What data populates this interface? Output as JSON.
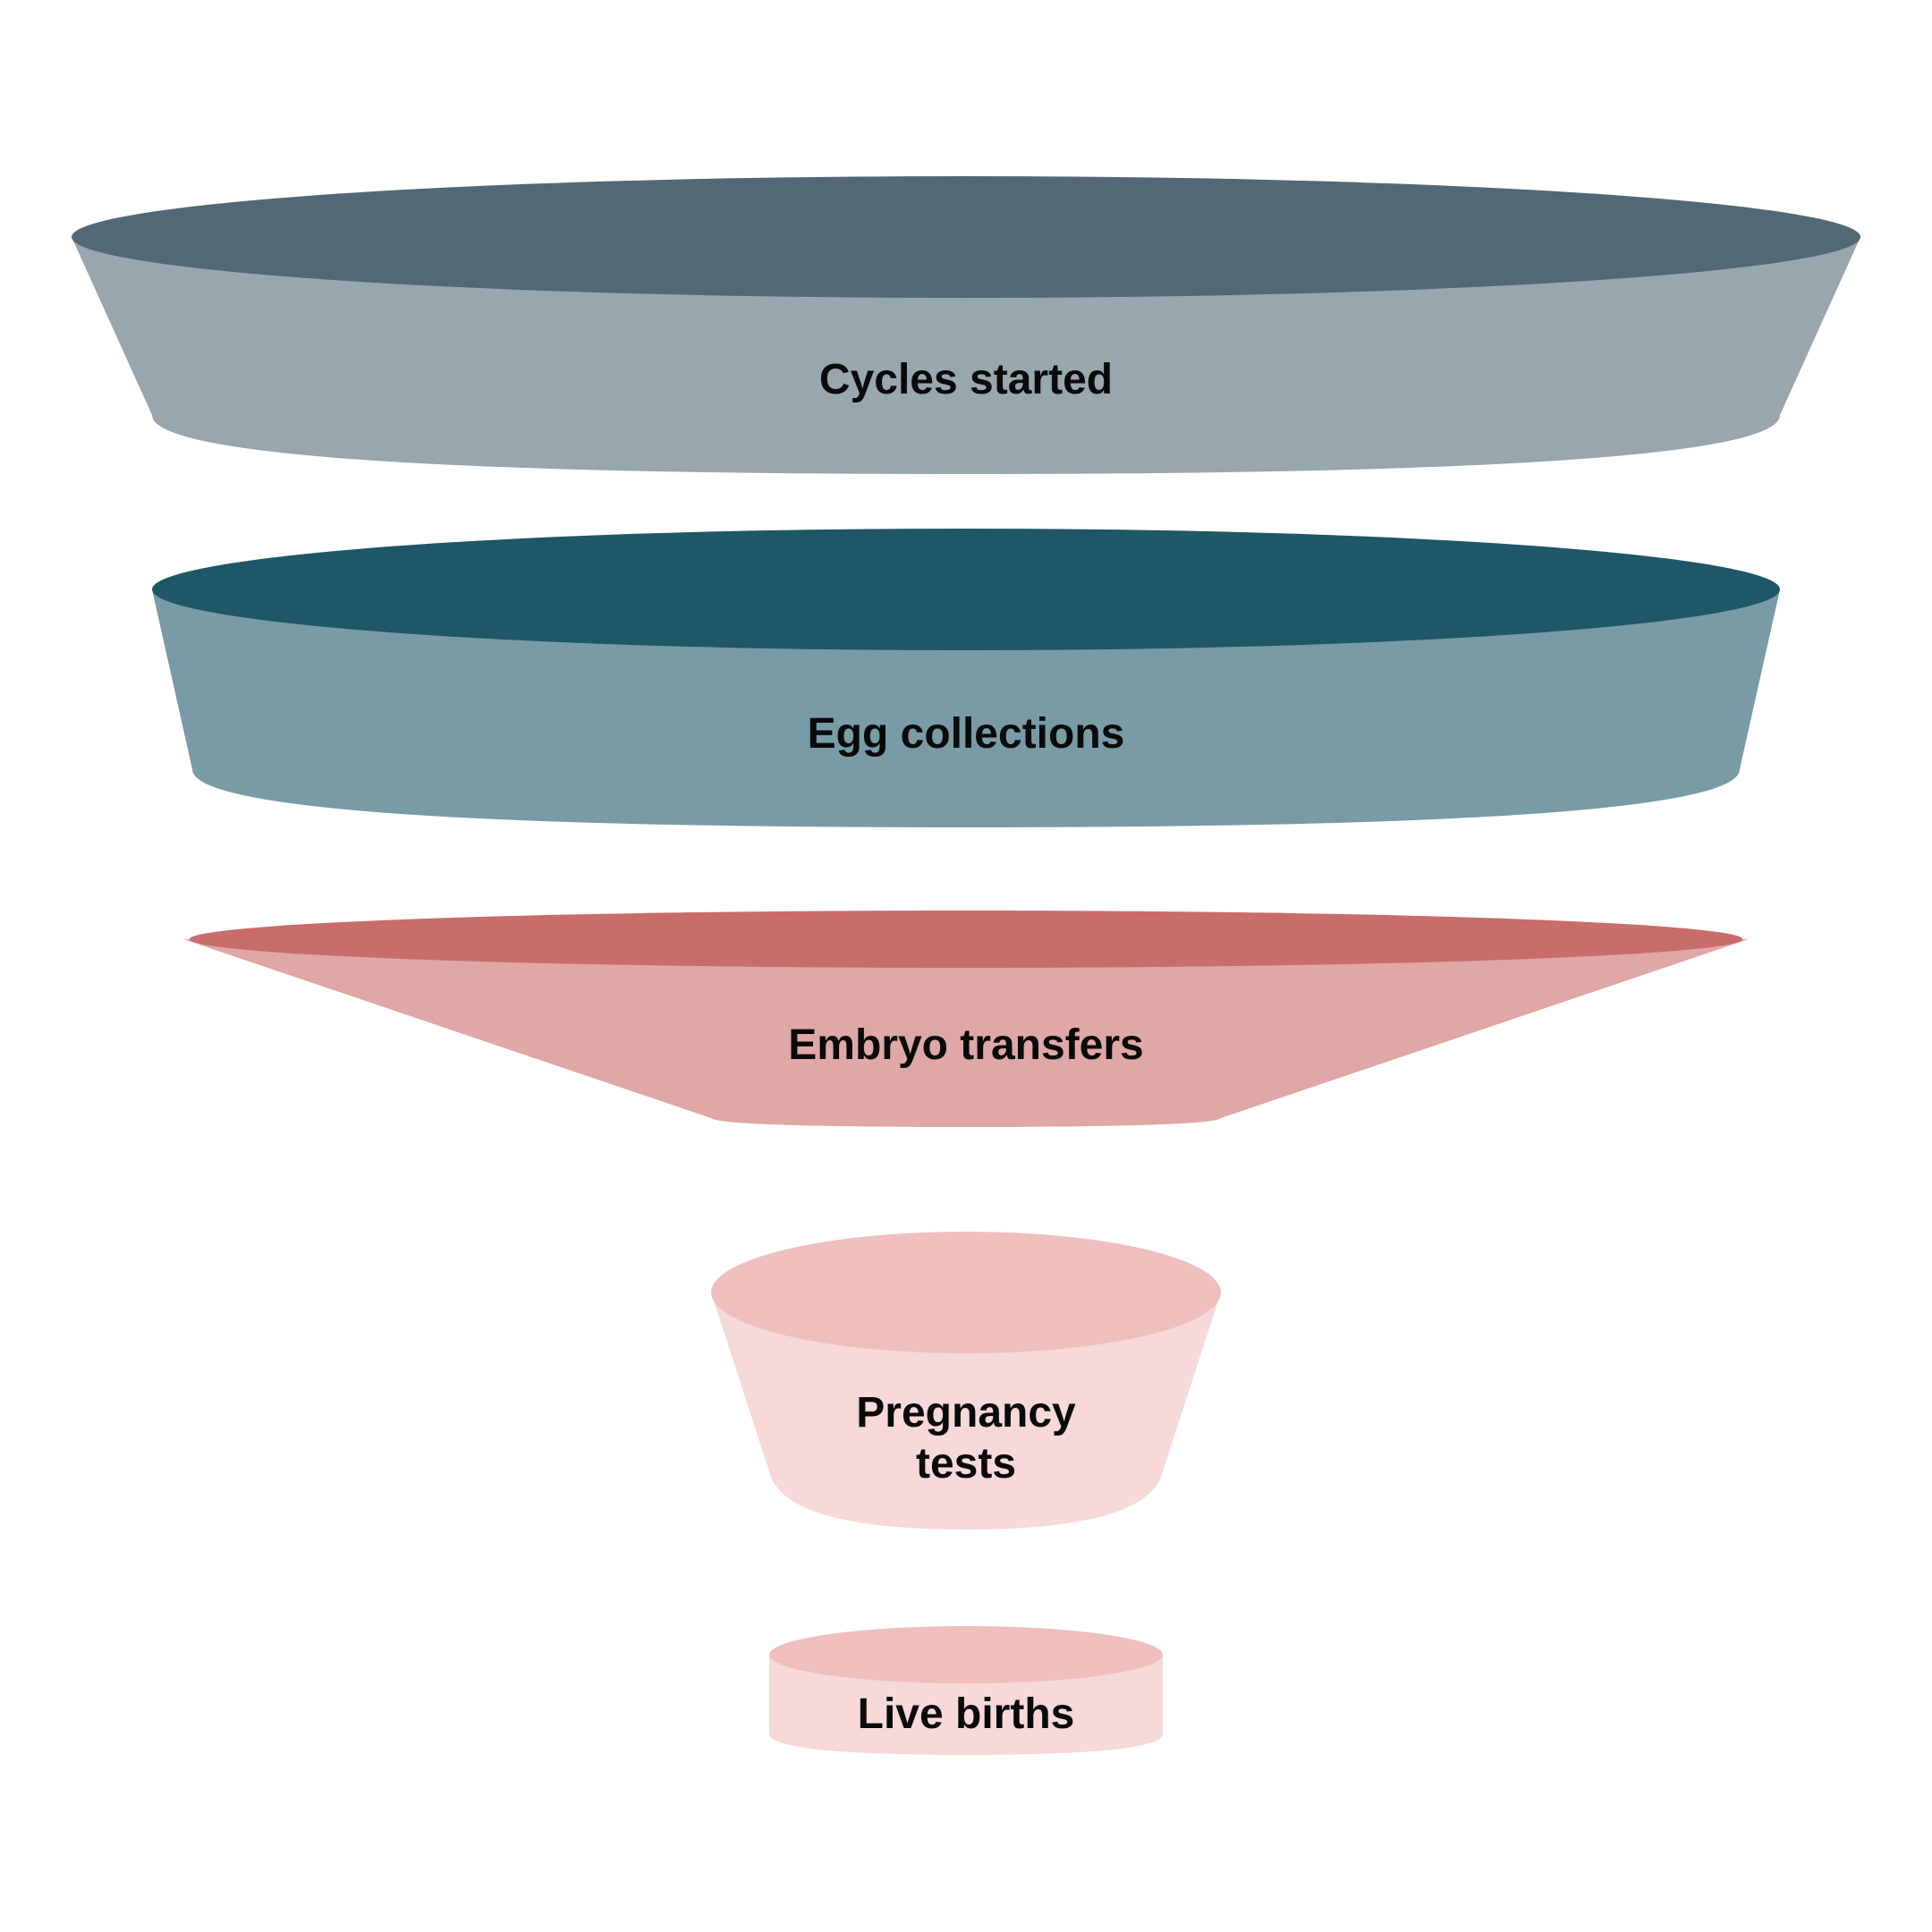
{
  "diagram": {
    "type": "funnel",
    "stages": [
      {
        "label": "Cycles started",
        "top_color": "#526877",
        "body_color": "#98a6ae"
      },
      {
        "label": "Egg collections",
        "top_color": "#1f5767",
        "body_color": "#789ba5"
      },
      {
        "label": "Embryo transfers",
        "top_color": "#c96d6a",
        "body_color": "#dfa7a6"
      },
      {
        "label_lines": [
          "Pregnancy",
          "tests"
        ],
        "top_color": "#efbfbe",
        "body_color": "#f6d9d8"
      },
      {
        "label": "Live births",
        "top_color": "#efbfbe",
        "body_color": "#f6d9d8"
      }
    ]
  }
}
